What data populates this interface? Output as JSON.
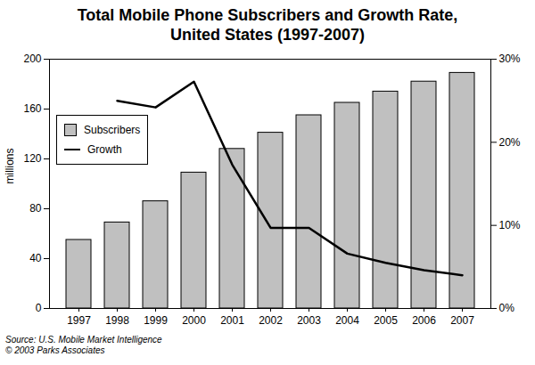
{
  "chart_data": {
    "type": "bar",
    "title": "Total Mobile Phone Subscribers and Growth Rate, United States (1997-2007)",
    "ylabel": "millions",
    "categories": [
      "1997",
      "1998",
      "1999",
      "2000",
      "2001",
      "2002",
      "2003",
      "2004",
      "2005",
      "2006",
      "2007"
    ],
    "series": [
      {
        "name": "Subscribers",
        "type": "bar",
        "color": "#c0c0c0",
        "values": [
          55,
          69,
          86,
          109,
          128,
          141,
          155,
          165,
          174,
          182,
          189
        ]
      },
      {
        "name": "Growth",
        "type": "line",
        "color": "#000000",
        "axis": "y2",
        "values": [
          null,
          25,
          24.2,
          27.3,
          17.3,
          9.7,
          9.7,
          6.6,
          5.5,
          4.6,
          4.0
        ]
      }
    ],
    "ylim": [
      0,
      200
    ],
    "yticks": [
      0,
      40,
      80,
      120,
      160,
      200
    ],
    "y2lim": [
      0,
      30
    ],
    "y2ticks": [
      {
        "value": 0,
        "label": "0%"
      },
      {
        "value": 10,
        "label": "10%"
      },
      {
        "value": 20,
        "label": "20%"
      },
      {
        "value": 30,
        "label": "30%"
      }
    ],
    "grid": false,
    "legend": "upper left",
    "annotations": [
      "Source: U.S. Mobile Market Intelligence",
      "© 2003 Parks Associates"
    ]
  }
}
